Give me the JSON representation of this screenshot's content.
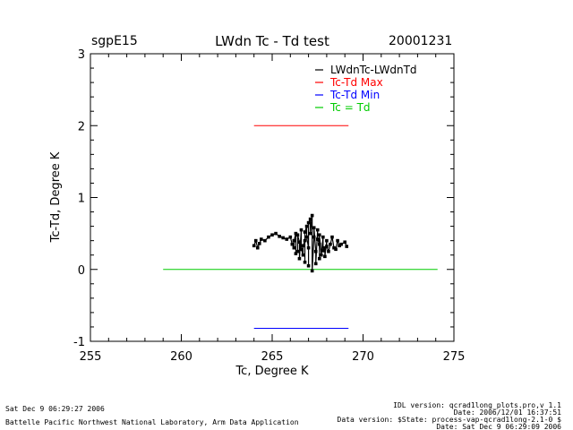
{
  "header": {
    "site": "sgpE15",
    "title": "LWdn Tc - Td test",
    "date": "20001231"
  },
  "footer": {
    "left_line1": "Sat Dec  9 06:29:27 2006",
    "left_line2": "Battelle Pacific Northwest National Laboratory, Arm Data Application",
    "right_line1": "IDL version: qcrad1long_plots.pro,v 1.1",
    "right_line2": "Date: 2006/12/01 16:37:51",
    "right_line3": "Data version: $State: process-vap-qcrad1long-2.1-0 $",
    "right_line4": "Date: Sat Dec  9 06:29:09 2006"
  },
  "colors": {
    "data": "#000000",
    "max": "#ff0000",
    "min": "#0000ff",
    "equal": "#00cc00"
  },
  "chart_data": {
    "type": "scatter",
    "title": "LWdn Tc - Td test",
    "xlabel": "Tc, Degree K",
    "ylabel": "Tc-Td, Degree K",
    "xlim": [
      255,
      275
    ],
    "ylim": [
      -1,
      3
    ],
    "xticks": [
      "255",
      "260",
      "265",
      "270",
      "275"
    ],
    "yticks": [
      "-1",
      "0",
      "1",
      "2",
      "3"
    ],
    "legend_position": "top-right",
    "legend": [
      {
        "label": "LWdnTc-LWdnTd",
        "color": "#000000"
      },
      {
        "label": "Tc-Td Max",
        "color": "#ff0000"
      },
      {
        "label": "Tc-Td Min",
        "color": "#0000ff"
      },
      {
        "label": "Tc = Td",
        "color": "#00cc00"
      }
    ],
    "series": [
      {
        "name": "LWdnTc-LWdnTd",
        "color": "#000000",
        "points": [
          [
            264.0,
            0.33
          ],
          [
            264.1,
            0.4
          ],
          [
            264.2,
            0.3
          ],
          [
            264.3,
            0.36
          ],
          [
            264.4,
            0.42
          ],
          [
            264.6,
            0.4
          ],
          [
            264.8,
            0.45
          ],
          [
            265.0,
            0.48
          ],
          [
            265.2,
            0.5
          ],
          [
            265.4,
            0.46
          ],
          [
            265.6,
            0.44
          ],
          [
            265.8,
            0.42
          ],
          [
            266.0,
            0.45
          ],
          [
            266.1,
            0.35
          ],
          [
            266.2,
            0.3
          ],
          [
            266.3,
            0.5
          ],
          [
            266.4,
            0.25
          ],
          [
            266.5,
            0.38
          ],
          [
            266.6,
            0.55
          ],
          [
            266.7,
            0.2
          ],
          [
            266.8,
            0.4
          ],
          [
            266.9,
            0.6
          ],
          [
            267.0,
            0.3
          ],
          [
            267.1,
            0.7
          ],
          [
            267.2,
            0.75
          ],
          [
            267.3,
            0.45
          ],
          [
            267.4,
            0.25
          ],
          [
            267.5,
            0.55
          ],
          [
            267.6,
            0.35
          ],
          [
            267.7,
            0.2
          ],
          [
            267.8,
            0.45
          ],
          [
            267.9,
            0.3
          ],
          [
            268.0,
            0.4
          ],
          [
            268.2,
            0.35
          ],
          [
            268.4,
            0.3
          ],
          [
            268.6,
            0.4
          ],
          [
            268.8,
            0.35
          ],
          [
            269.0,
            0.38
          ],
          [
            269.1,
            0.32
          ],
          [
            266.5,
            0.15
          ],
          [
            266.8,
            0.1
          ],
          [
            267.0,
            0.05
          ],
          [
            267.2,
            -0.02
          ],
          [
            267.4,
            0.08
          ],
          [
            266.3,
            0.22
          ],
          [
            266.6,
            0.28
          ],
          [
            267.6,
            0.15
          ],
          [
            267.9,
            0.18
          ],
          [
            268.1,
            0.25
          ],
          [
            266.9,
            0.45
          ],
          [
            267.1,
            0.5
          ],
          [
            267.3,
            0.58
          ],
          [
            266.7,
            0.33
          ],
          [
            267.5,
            0.42
          ],
          [
            268.3,
            0.45
          ],
          [
            268.5,
            0.28
          ],
          [
            268.7,
            0.33
          ],
          [
            266.2,
            0.4
          ],
          [
            266.4,
            0.48
          ],
          [
            267.0,
            0.65
          ],
          [
            266.8,
            0.52
          ],
          [
            267.6,
            0.48
          ],
          [
            267.8,
            0.26
          ],
          [
            268.0,
            0.32
          ]
        ]
      },
      {
        "name": "Tc-Td Max",
        "color": "#ff0000",
        "x": [
          264,
          269.2
        ],
        "y": [
          2,
          2
        ]
      },
      {
        "name": "Tc-Td Min",
        "color": "#0000ff",
        "x": [
          264,
          269.2
        ],
        "y": [
          -0.82,
          -0.82
        ]
      },
      {
        "name": "Tc = Td",
        "color": "#00cc00",
        "x": [
          259,
          274.1
        ],
        "y": [
          0,
          0
        ]
      }
    ]
  }
}
